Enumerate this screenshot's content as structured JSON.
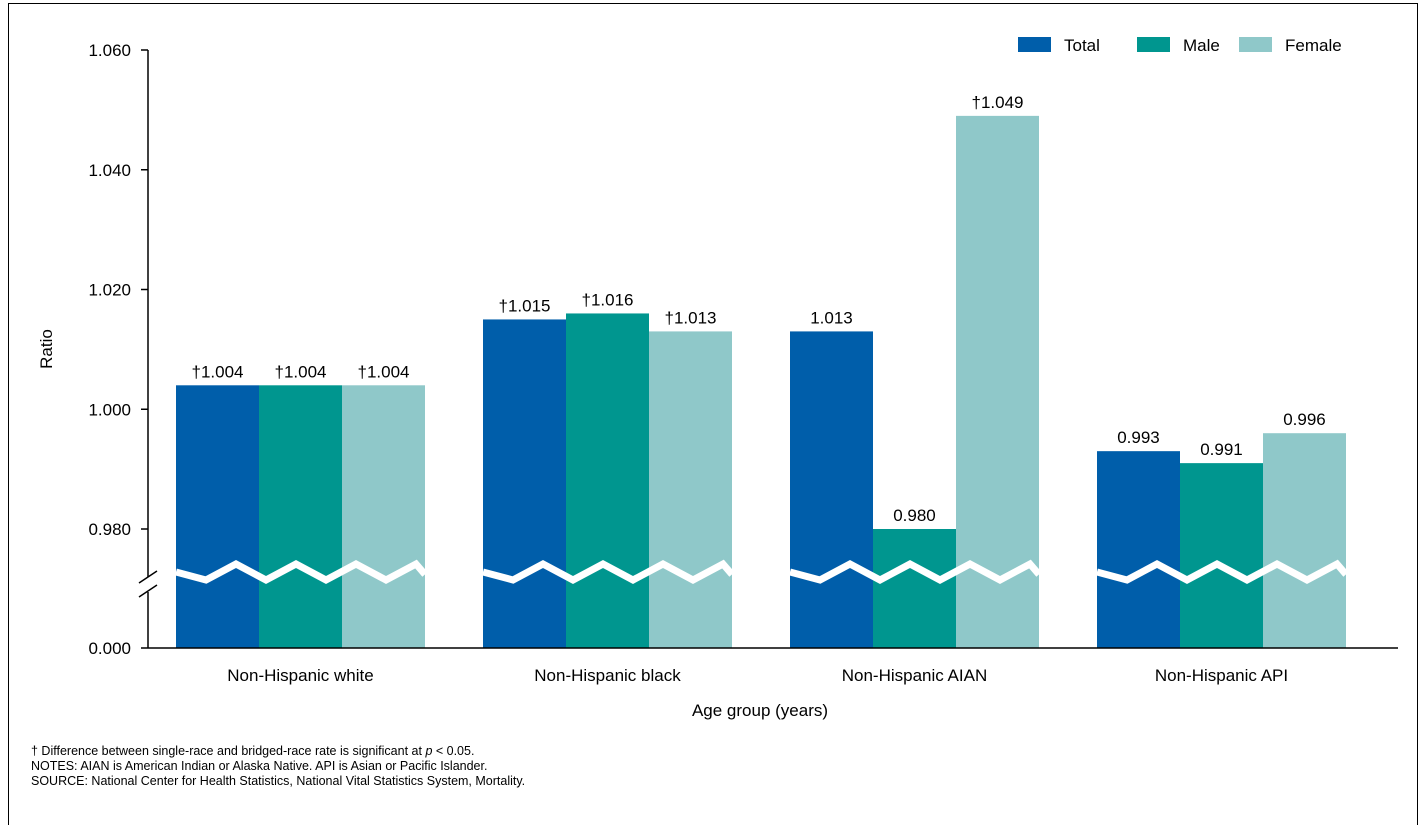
{
  "chart_data": {
    "type": "bar",
    "xlabel": "Age group (years)",
    "ylabel": "Ratio",
    "categories": [
      "Non-Hispanic white",
      "Non-Hispanic black",
      "Non-Hispanic AIAN",
      "Non-Hispanic API"
    ],
    "series": [
      {
        "name": "Total",
        "color": "#005eaa",
        "values": [
          1.004,
          1.015,
          1.013,
          0.993
        ],
        "labels": [
          "†1.004",
          "†1.015",
          "1.013",
          "0.993"
        ]
      },
      {
        "name": "Male",
        "color": "#00968f",
        "values": [
          1.004,
          1.016,
          0.98,
          0.991
        ],
        "labels": [
          "†1.004",
          "†1.016",
          "0.980",
          "0.991"
        ]
      },
      {
        "name": "Female",
        "color": "#8fc8c9",
        "values": [
          1.004,
          1.013,
          1.049,
          0.996
        ],
        "labels": [
          "†1.004",
          "†1.013",
          "†1.049",
          "0.996"
        ]
      }
    ],
    "yticks": [
      0.0,
      0.98,
      1.0,
      1.02,
      1.04,
      1.06
    ],
    "ytick_labels": [
      "0.000",
      "0.980",
      "1.000",
      "1.020",
      "1.040",
      "1.060"
    ],
    "ylim": [
      0.97,
      1.06
    ],
    "axis_break": true,
    "grid": false,
    "legend_position": "top-right"
  },
  "notes": {
    "line1_pre": "† Difference between single-race and bridged-race rate is significant at ",
    "line1_p": "p",
    "line1_post": " < 0.05.",
    "line2": "NOTES: AIAN is American Indian or Alaska Native. API is Asian or Pacific Islander.",
    "line3": "SOURCE: National Center for Health Statistics, National Vital Statistics System, Mortality."
  }
}
